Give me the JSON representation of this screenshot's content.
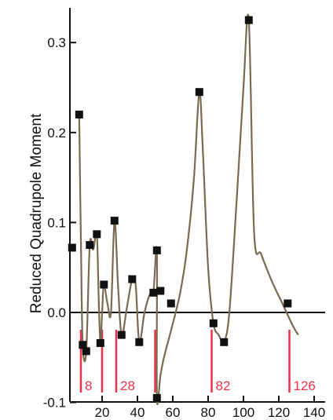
{
  "chart_data": {
    "type": "line",
    "title": "",
    "xlabel": "",
    "ylabel": "Reduced Quadrupole Moment",
    "xlim": [
      0,
      140
    ],
    "ylim": [
      -0.1,
      0.34
    ],
    "x_ticks": [
      20,
      40,
      60,
      80,
      100,
      120,
      140
    ],
    "y_ticks": [
      -0.1,
      0.0,
      0.1,
      0.2,
      0.3
    ],
    "y_tick_labels": [
      "-0.1",
      "0.0",
      "0.1",
      "0.2",
      "0.3"
    ],
    "grid": false,
    "legend": "none",
    "zero_line": 0.0,
    "series": [
      {
        "type": "scatter",
        "marker": "square",
        "x": [
          3,
          7,
          9,
          11,
          13,
          17,
          19,
          21,
          27,
          31,
          37,
          41,
          49,
          51,
          51,
          53,
          59,
          75,
          83,
          89,
          103,
          125
        ],
        "y": [
          0.072,
          0.22,
          -0.036,
          -0.043,
          0.075,
          0.087,
          -0.034,
          0.031,
          0.102,
          -0.025,
          0.037,
          -0.033,
          0.022,
          0.069,
          -0.095,
          0.024,
          0.01,
          0.245,
          -0.012,
          -0.033,
          0.325,
          0.01
        ]
      },
      {
        "type": "line",
        "x": [
          7,
          8,
          9,
          11,
          13,
          15,
          17,
          18,
          19,
          20,
          21,
          23,
          25,
          27,
          29,
          31,
          34,
          37,
          39,
          41,
          44,
          47,
          49,
          51,
          51,
          53,
          55,
          59,
          64,
          68,
          72,
          75,
          77,
          80,
          83,
          86,
          89,
          92,
          96,
          100,
          103,
          106,
          110,
          116,
          122,
          128,
          131
        ],
        "y": [
          0.22,
          0.08,
          -0.036,
          -0.043,
          0.075,
          0.07,
          0.087,
          0.02,
          -0.034,
          0.0,
          0.031,
          0.01,
          0.0,
          0.102,
          0.03,
          -0.025,
          0.005,
          0.037,
          0.03,
          -0.033,
          0.0,
          0.02,
          0.022,
          0.069,
          -0.095,
          -0.07,
          -0.05,
          -0.02,
          0.02,
          0.07,
          0.15,
          0.245,
          0.18,
          0.05,
          -0.012,
          -0.025,
          -0.033,
          0.0,
          0.12,
          0.25,
          0.325,
          0.09,
          0.065,
          0.035,
          0.01,
          -0.015,
          -0.025
        ]
      }
    ],
    "magic_numbers": [
      {
        "x": 8,
        "label": "8"
      },
      {
        "x": 20,
        "label": ""
      },
      {
        "x": 28,
        "label": "28"
      },
      {
        "x": 50,
        "label": ""
      },
      {
        "x": 82,
        "label": "82"
      },
      {
        "x": 126,
        "label": "126"
      }
    ],
    "colors": {
      "curve": "#7a6a52",
      "marker": "#111111",
      "axis": "#111111",
      "magic": "#f0304a"
    }
  }
}
